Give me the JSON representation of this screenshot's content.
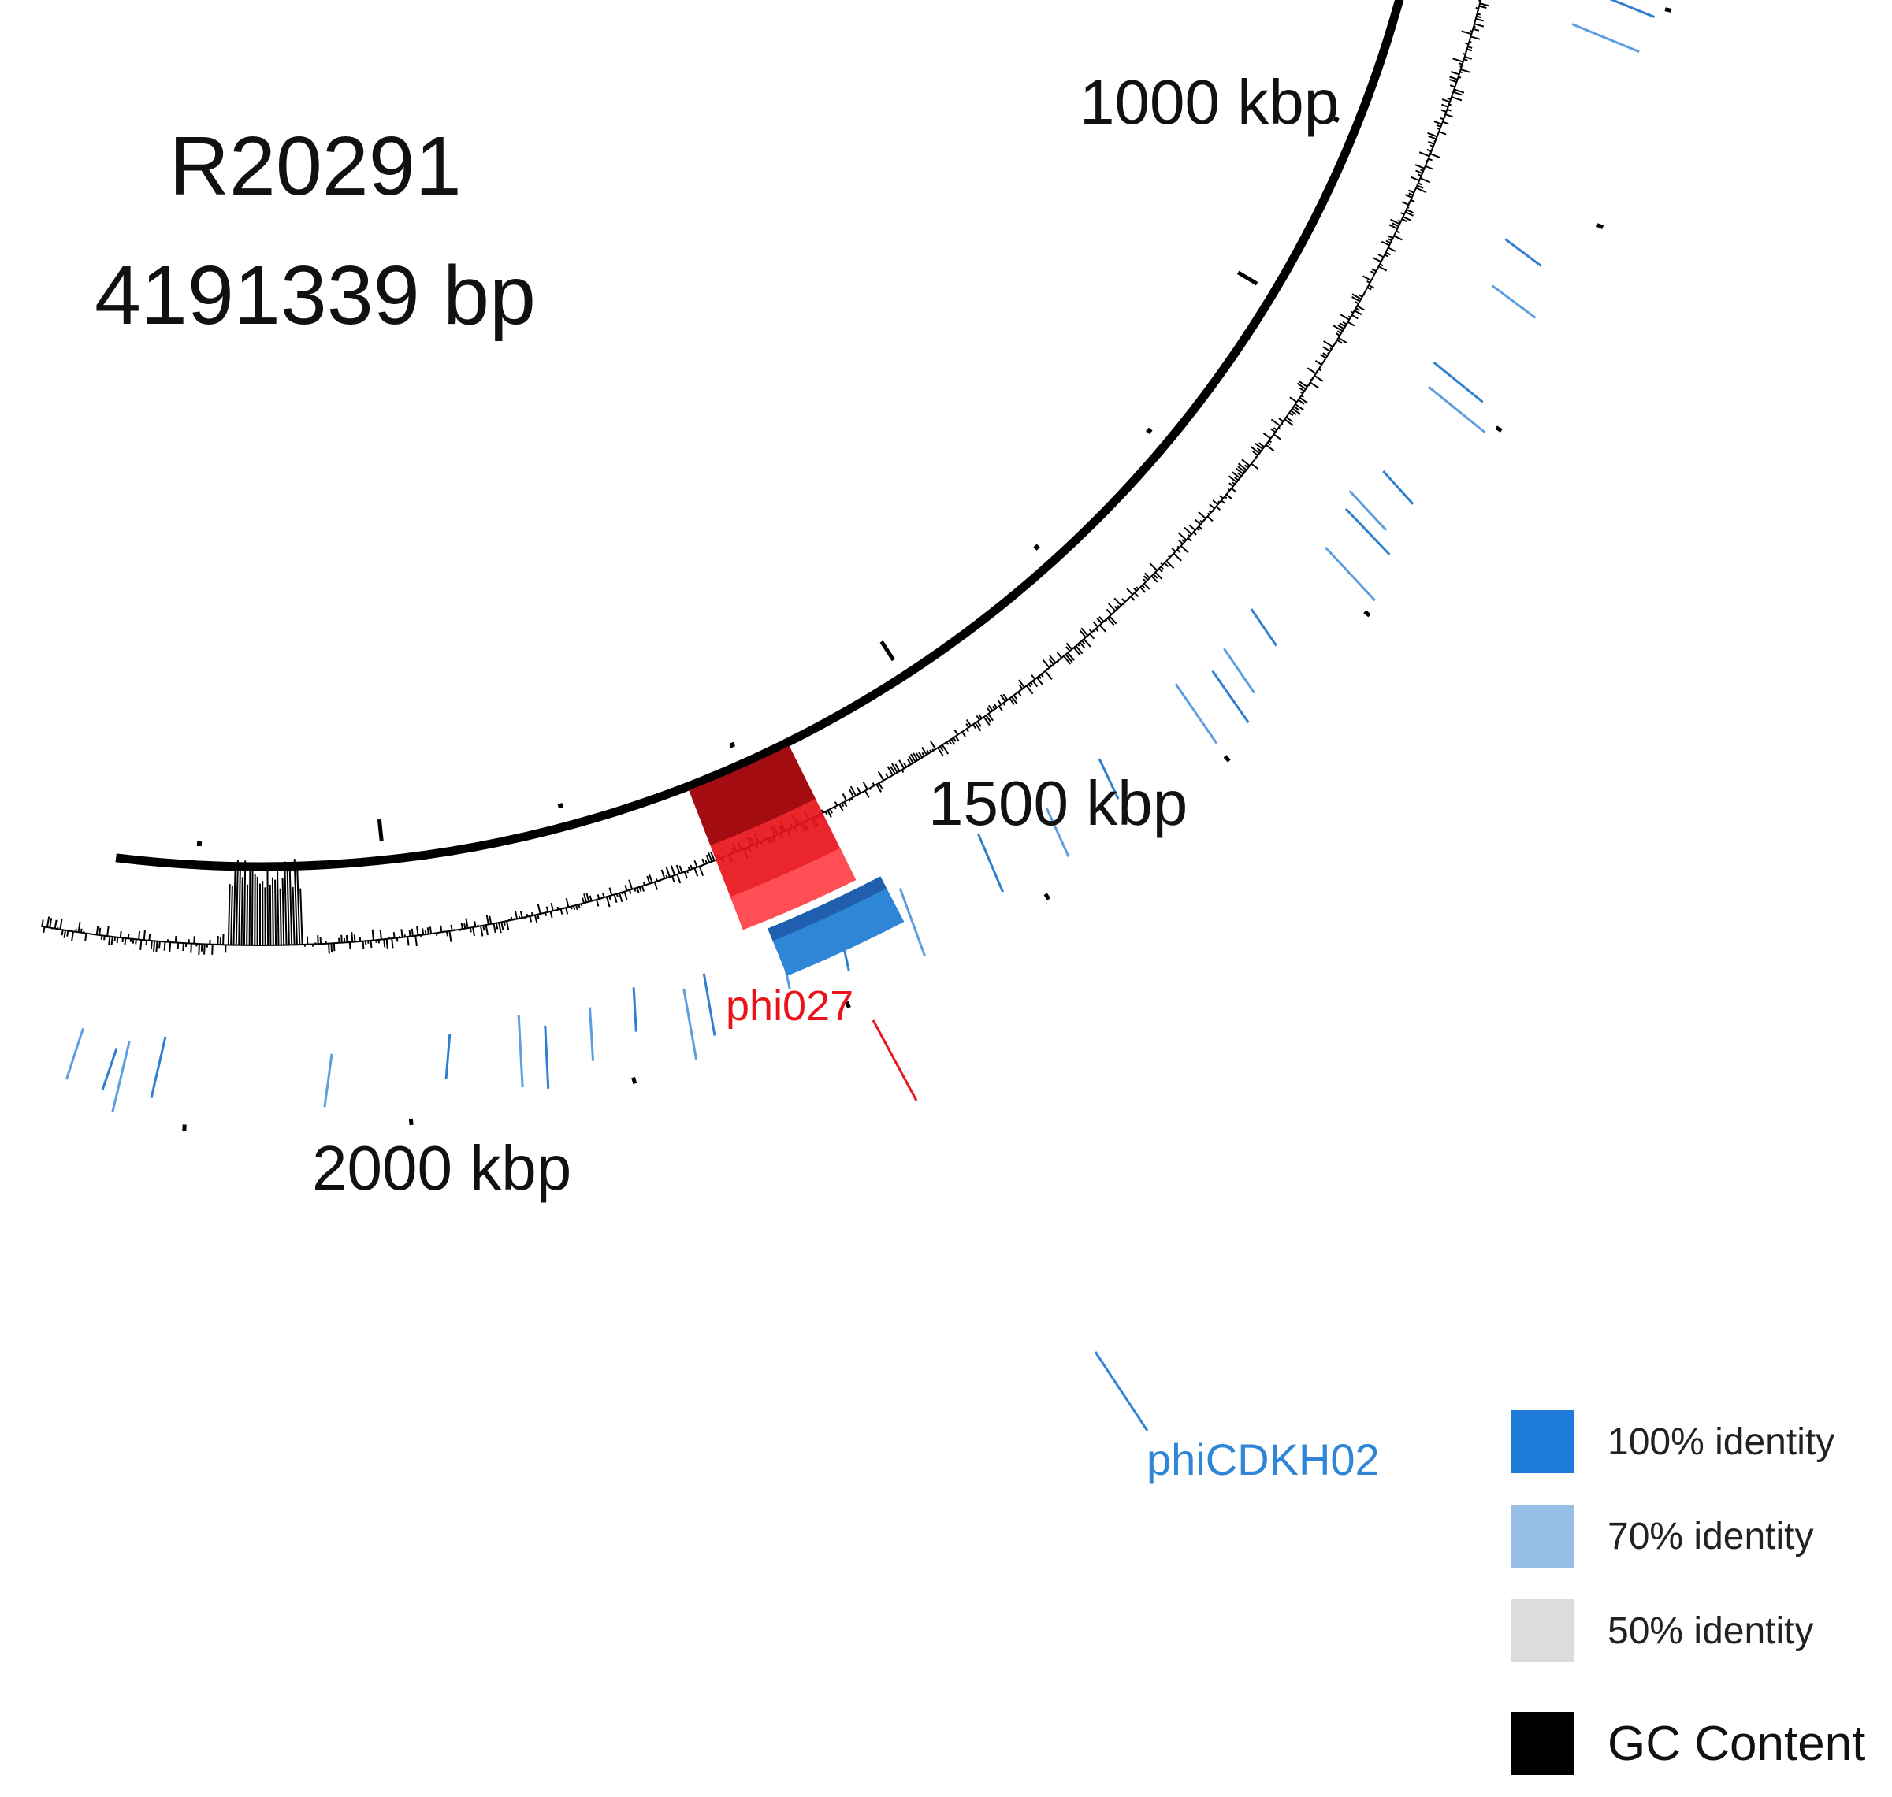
{
  "genome": {
    "name": "R20291",
    "length_label": "4191339 bp"
  },
  "scale_labels": [
    "1000 kbp",
    "1500 kbp",
    "2000 kbp"
  ],
  "regions": {
    "phage_a": {
      "label": "phi027",
      "color": "#e8141a"
    },
    "phage_b": {
      "label": "phiCDKH02",
      "color": "#2f86d6"
    }
  },
  "legend": [
    {
      "label": "100% identity",
      "color": "#1f7bd8"
    },
    {
      "label": "70% identity",
      "color": "#97bfe6"
    },
    {
      "label": "50% identity",
      "color": "#dcdcdc"
    },
    {
      "label": "GC Content",
      "color": "#000000"
    }
  ]
}
